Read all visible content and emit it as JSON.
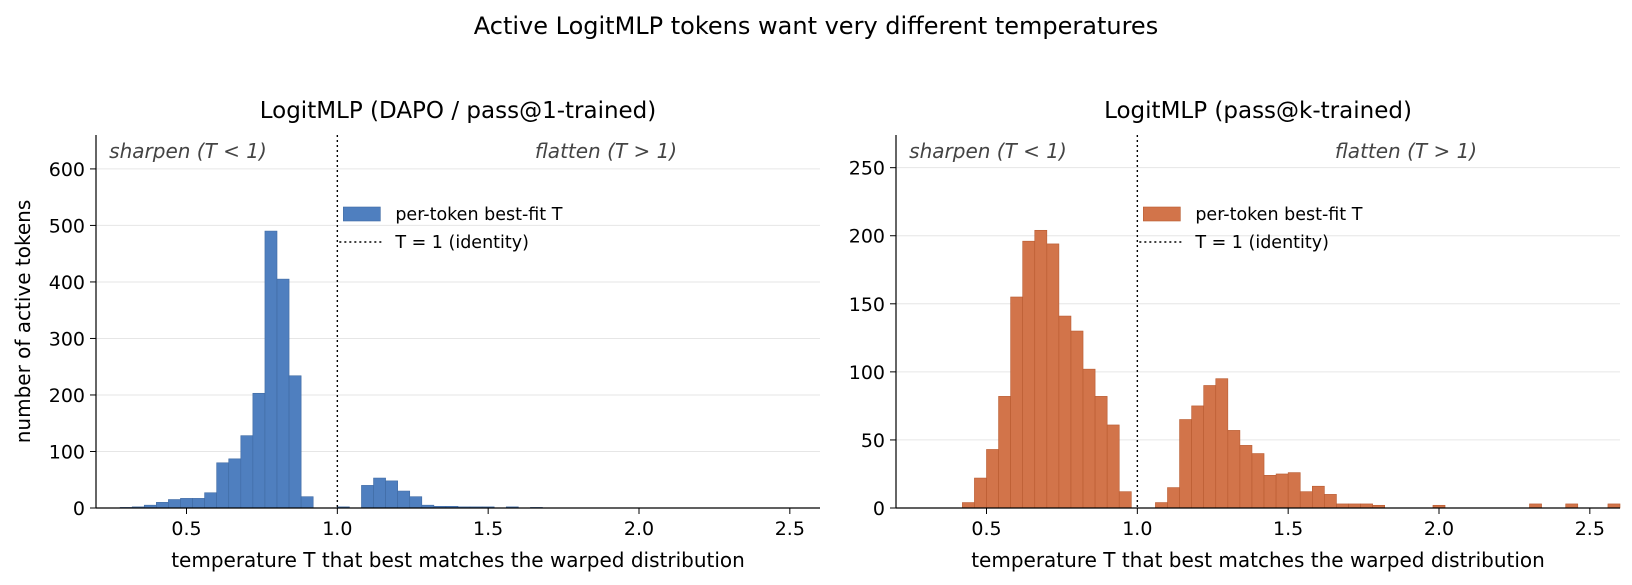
{
  "figure": {
    "suptitle": "Active LogitMLP tokens want very different temperatures"
  },
  "chart_data": [
    {
      "type": "bar",
      "title": "LogitMLP (DAPO / pass@1-trained)",
      "xlabel": "temperature T  that best matches the warped distribution",
      "ylabel": "number of active tokens",
      "xlim": [
        0.2,
        2.6
      ],
      "ylim": [
        0,
        660
      ],
      "xticks": [
        "0.5",
        "1.0",
        "1.5",
        "2.0",
        "2.5"
      ],
      "yticks": [
        "0",
        "100",
        "200",
        "300",
        "400",
        "500",
        "600"
      ],
      "bin_width": 0.04,
      "grid": "y",
      "color": "#4f7fbf",
      "edge_color": "#3f6aa3",
      "legend": {
        "position": "upper-center",
        "entries": [
          {
            "label": "per-token best-fit T",
            "kind": "bar"
          },
          {
            "label": "T = 1 (identity)",
            "kind": "dotted-line"
          }
        ]
      },
      "annotations": [
        {
          "text": "sharpen  (T < 1)",
          "region": "left"
        },
        {
          "text": "flatten  (T > 1)",
          "region": "right"
        }
      ],
      "reference_line": {
        "x": 1.0,
        "style": "dotted"
      },
      "bins": [
        [
          0.28,
          1
        ],
        [
          0.32,
          2
        ],
        [
          0.36,
          5
        ],
        [
          0.4,
          10
        ],
        [
          0.44,
          15
        ],
        [
          0.48,
          17
        ],
        [
          0.52,
          17
        ],
        [
          0.56,
          27
        ],
        [
          0.6,
          80
        ],
        [
          0.64,
          87
        ],
        [
          0.68,
          128
        ],
        [
          0.72,
          203
        ],
        [
          0.76,
          490
        ],
        [
          0.8,
          405
        ],
        [
          0.84,
          234
        ],
        [
          0.88,
          20
        ],
        [
          1.0,
          2
        ],
        [
          1.08,
          40
        ],
        [
          1.12,
          53
        ],
        [
          1.16,
          48
        ],
        [
          1.2,
          30
        ],
        [
          1.24,
          20
        ],
        [
          1.28,
          5
        ],
        [
          1.32,
          3
        ],
        [
          1.36,
          3
        ],
        [
          1.4,
          2
        ],
        [
          1.44,
          2
        ],
        [
          1.48,
          2
        ],
        [
          1.56,
          2
        ],
        [
          1.64,
          1
        ]
      ]
    },
    {
      "type": "bar",
      "title": "LogitMLP (pass@k-trained)",
      "xlabel": "temperature T  that best matches the warped distribution",
      "ylabel": "",
      "xlim": [
        0.2,
        2.6
      ],
      "ylim": [
        0,
        274
      ],
      "xticks": [
        "0.5",
        "1.0",
        "1.5",
        "2.0",
        "2.5"
      ],
      "yticks": [
        "0",
        "50",
        "100",
        "150",
        "200",
        "250"
      ],
      "bin_width": 0.04,
      "grid": "y",
      "color": "#d2744a",
      "edge_color": "#b85a30",
      "legend": {
        "position": "upper-center",
        "entries": [
          {
            "label": "per-token best-fit T",
            "kind": "bar"
          },
          {
            "label": "T = 1 (identity)",
            "kind": "dotted-line"
          }
        ]
      },
      "annotations": [
        {
          "text": "sharpen  (T < 1)",
          "region": "left"
        },
        {
          "text": "flatten  (T > 1)",
          "region": "right"
        }
      ],
      "reference_line": {
        "x": 1.0,
        "style": "dotted"
      },
      "bins": [
        [
          0.42,
          4
        ],
        [
          0.46,
          22
        ],
        [
          0.5,
          43
        ],
        [
          0.54,
          82
        ],
        [
          0.58,
          155
        ],
        [
          0.62,
          196
        ],
        [
          0.66,
          204
        ],
        [
          0.7,
          194
        ],
        [
          0.74,
          141
        ],
        [
          0.78,
          130
        ],
        [
          0.82,
          102
        ],
        [
          0.86,
          82
        ],
        [
          0.9,
          61
        ],
        [
          0.94,
          12
        ],
        [
          1.06,
          4
        ],
        [
          1.1,
          15
        ],
        [
          1.14,
          65
        ],
        [
          1.18,
          75
        ],
        [
          1.22,
          90
        ],
        [
          1.26,
          95
        ],
        [
          1.3,
          57
        ],
        [
          1.34,
          46
        ],
        [
          1.38,
          40
        ],
        [
          1.42,
          24
        ],
        [
          1.46,
          25
        ],
        [
          1.5,
          26
        ],
        [
          1.54,
          12
        ],
        [
          1.58,
          16
        ],
        [
          1.62,
          10
        ],
        [
          1.66,
          3
        ],
        [
          1.7,
          3
        ],
        [
          1.74,
          3
        ],
        [
          1.78,
          2
        ],
        [
          1.98,
          2
        ],
        [
          2.3,
          3
        ],
        [
          2.42,
          3
        ],
        [
          2.56,
          3
        ]
      ]
    }
  ]
}
